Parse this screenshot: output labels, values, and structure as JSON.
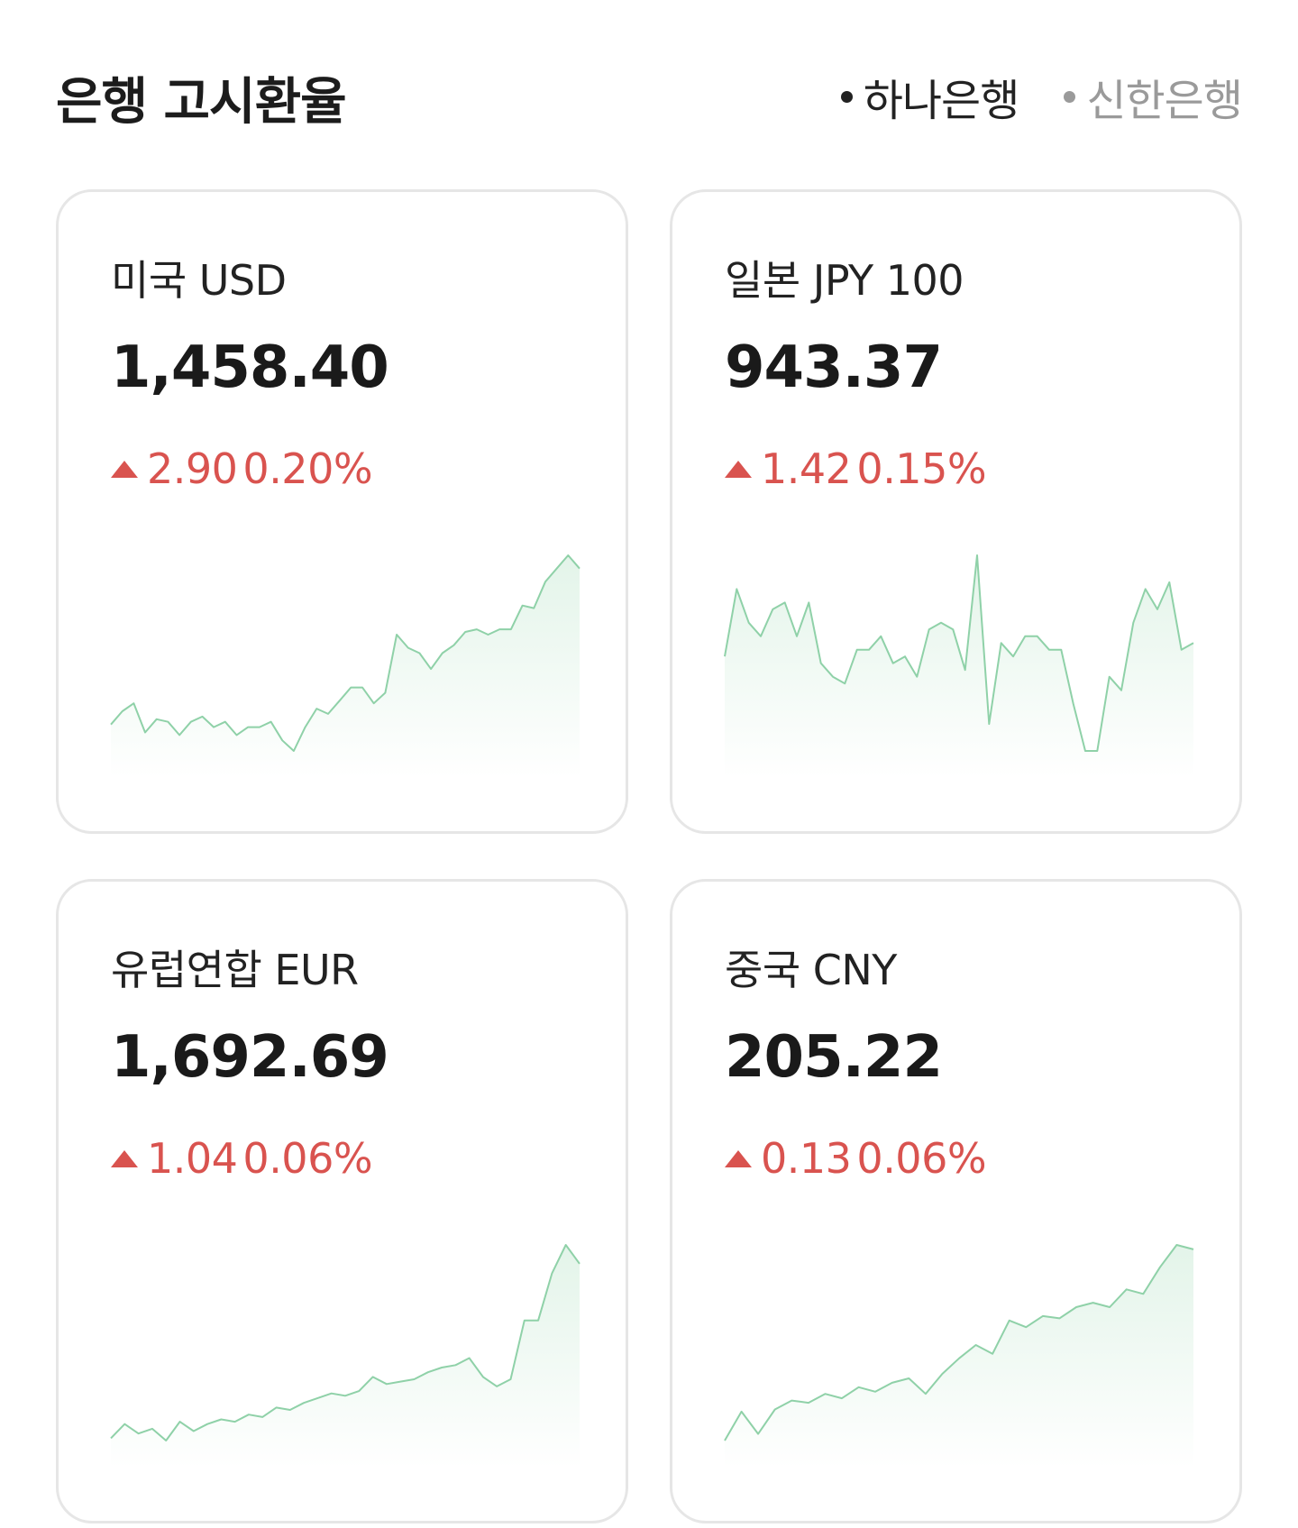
{
  "header": {
    "title": "은행 고시환율",
    "banks": [
      {
        "label": "하나은행",
        "active": true
      },
      {
        "label": "신한은행",
        "active": false
      }
    ]
  },
  "colors": {
    "up": "#d9534f",
    "spark_line": "#8fd1a8",
    "spark_fill_top": "#e3f4e9"
  },
  "currencies": [
    {
      "name": "미국 USD",
      "rate": "1,458.40",
      "change": "2.90",
      "change_pct": "0.20%",
      "direction": "up"
    },
    {
      "name": "일본 JPY 100",
      "rate": "943.37",
      "change": "1.42",
      "change_pct": "0.15%",
      "direction": "up"
    },
    {
      "name": "유럽연합 EUR",
      "rate": "1,692.69",
      "change": "1.04",
      "change_pct": "0.06%",
      "direction": "up"
    },
    {
      "name": "중국 CNY",
      "rate": "205.22",
      "change": "0.13",
      "change_pct": "0.06%",
      "direction": "up"
    }
  ],
  "chart_data": [
    {
      "type": "area",
      "values": [
        1391,
        1396,
        1399,
        1388,
        1393,
        1392,
        1387,
        1392,
        1394,
        1390,
        1392,
        1387,
        1390,
        1390,
        1392,
        1385,
        1381,
        1390,
        1397,
        1395,
        1400,
        1405,
        1405,
        1399,
        1403,
        1425,
        1420,
        1418,
        1412,
        1418,
        1421,
        1426,
        1427,
        1425,
        1427,
        1427,
        1436,
        1435,
        1445,
        1450,
        1455,
        1450
      ]
    },
    {
      "type": "area",
      "values": [
        935,
        945,
        940,
        938,
        942,
        943,
        938,
        943,
        934,
        932,
        931,
        936,
        936,
        938,
        934,
        935,
        932,
        939,
        940,
        939,
        933,
        950,
        925,
        937,
        935,
        938,
        938,
        936,
        936,
        928,
        921,
        921,
        932,
        930,
        940,
        945,
        942,
        946,
        936,
        937
      ]
    },
    {
      "type": "area",
      "values": [
        1610,
        1616,
        1612,
        1614,
        1609,
        1617,
        1613,
        1616,
        1618,
        1617,
        1620,
        1619,
        1623,
        1622,
        1625,
        1627,
        1629,
        1628,
        1630,
        1636,
        1633,
        1634,
        1635,
        1638,
        1640,
        1641,
        1644,
        1636,
        1632,
        1635,
        1660,
        1660,
        1680,
        1692,
        1684
      ]
    },
    {
      "type": "area",
      "values": [
        196.5,
        197.8,
        196.8,
        197.9,
        198.3,
        198.2,
        198.6,
        198.4,
        198.9,
        198.7,
        199.1,
        199.3,
        198.6,
        199.5,
        200.2,
        200.8,
        200.4,
        201.9,
        201.6,
        202.1,
        202.0,
        202.5,
        202.7,
        202.5,
        203.3,
        203.1,
        204.3,
        205.3,
        205.1
      ]
    }
  ]
}
